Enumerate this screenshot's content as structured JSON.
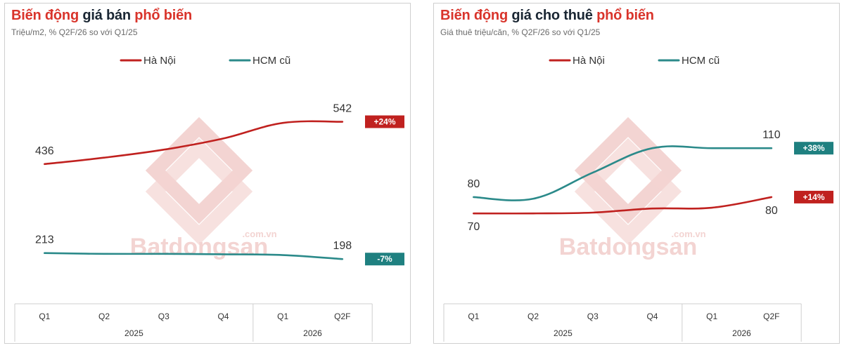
{
  "colors": {
    "hanoi": "#c0211f",
    "hcm": "#2b8a8a",
    "badge_red": "#c0211f",
    "badge_teal": "#1f8080",
    "title_highlight": "#d9342b",
    "title_dark": "#1a2633",
    "watermark": "#f3d4d2"
  },
  "watermark": {
    "brand": "Batdongsan",
    "domain": ".com.vn"
  },
  "chart_data": [
    {
      "type": "line",
      "title_parts": [
        {
          "text": "Biến động",
          "highlight": true
        },
        {
          "text": " giá bán ",
          "highlight": false
        },
        {
          "text": "phổ biến",
          "highlight": true
        }
      ],
      "subtitle": "Triệu/m2, % Q2F/26 so với Q1/25",
      "categories": [
        "Q1",
        "Q2",
        "Q3",
        "Q4",
        "Q1",
        "Q2F"
      ],
      "year_groups": [
        {
          "label": "2025",
          "span": 4
        },
        {
          "label": "2026",
          "span": 2
        }
      ],
      "series": [
        {
          "name": "Hà Nội",
          "color_key": "hanoi",
          "values": [
            436,
            452,
            472,
            500,
            539,
            542
          ],
          "labels": {
            "0": "436",
            "5": "542"
          },
          "change": "+24%",
          "badge_color_key": "badge_red",
          "label_pos": "above"
        },
        {
          "name": "HCM cũ",
          "color_key": "hcm",
          "values": [
            213,
            211,
            211,
            210,
            208,
            198
          ],
          "labels": {
            "0": "213",
            "5": "198"
          },
          "change": "-7%",
          "badge_color_key": "badge_teal",
          "label_pos": "above"
        }
      ],
      "ylim": [
        100,
        680
      ],
      "legend": "top-center",
      "grid": false
    },
    {
      "type": "line",
      "title_parts": [
        {
          "text": "Biến động",
          "highlight": true
        },
        {
          "text": " giá cho thuê ",
          "highlight": false
        },
        {
          "text": "phổ biến",
          "highlight": true
        }
      ],
      "subtitle": "Giá thuê triệu/căn, % Q2F/26 so với Q1/25",
      "categories": [
        "Q1",
        "Q2",
        "Q3",
        "Q4",
        "Q1",
        "Q2F"
      ],
      "year_groups": [
        {
          "label": "2025",
          "span": 4
        },
        {
          "label": "2026",
          "span": 2
        }
      ],
      "series": [
        {
          "name": "Hà Nội",
          "color_key": "hanoi",
          "values": [
            70,
            70,
            70.5,
            73,
            73.5,
            80
          ],
          "labels": {
            "0": "70",
            "5": "80"
          },
          "change": "+14%",
          "badge_color_key": "badge_red",
          "label_pos": "below"
        },
        {
          "name": "HCM cũ",
          "color_key": "hcm",
          "values": [
            80,
            79,
            95,
            110,
            110,
            110
          ],
          "labels": {
            "0": "80",
            "5": "110"
          },
          "change": "+38%",
          "badge_color_key": "badge_teal",
          "label_pos": "above"
        }
      ],
      "ylim": [
        18,
        160
      ],
      "legend": "top-center",
      "grid": false
    }
  ]
}
